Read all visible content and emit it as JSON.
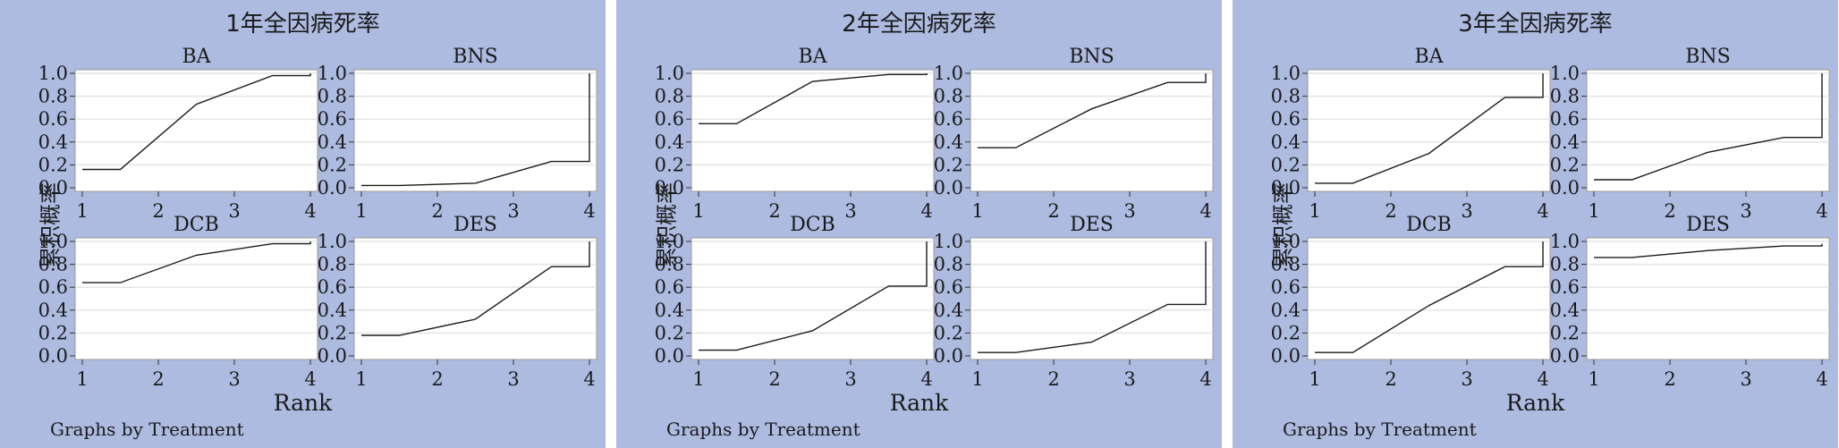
{
  "chart_data": [
    {
      "type": "line",
      "title": "1年全因病死率",
      "ylabel": "累积概率",
      "xlabel": "Rank",
      "note": "Graphs by Treatment",
      "ylim": [
        0,
        1
      ],
      "xlim": [
        1,
        4
      ],
      "yticks": [
        "0.0",
        "0.2",
        "0.4",
        "0.6",
        "0.8",
        "1.0"
      ],
      "xticks": [
        "1",
        "2",
        "3",
        "4"
      ],
      "subplots": [
        {
          "name": "BA",
          "x": [
            1,
            1.5,
            2.5,
            3.5,
            4,
            4
          ],
          "y": [
            0.16,
            0.16,
            0.73,
            0.98,
            0.98,
            1.0
          ]
        },
        {
          "name": "BNS",
          "x": [
            1,
            1.5,
            2.5,
            3.5,
            4,
            4
          ],
          "y": [
            0.02,
            0.02,
            0.04,
            0.23,
            0.23,
            1.0
          ]
        },
        {
          "name": "DCB",
          "x": [
            1,
            1.5,
            2.5,
            3.5,
            4,
            4
          ],
          "y": [
            0.64,
            0.64,
            0.88,
            0.98,
            0.98,
            1.0
          ]
        },
        {
          "name": "DES",
          "x": [
            1,
            1.5,
            2.5,
            3.5,
            4,
            4
          ],
          "y": [
            0.18,
            0.18,
            0.32,
            0.78,
            0.78,
            1.0
          ]
        }
      ]
    },
    {
      "type": "line",
      "title": "2年全因病死率",
      "ylabel": "累积概率",
      "xlabel": "Rank",
      "note": "Graphs by Treatment",
      "ylim": [
        0,
        1
      ],
      "xlim": [
        1,
        4
      ],
      "yticks": [
        "0.0",
        "0.2",
        "0.4",
        "0.6",
        "0.8",
        "1.0"
      ],
      "xticks": [
        "1",
        "2",
        "3",
        "4"
      ],
      "subplots": [
        {
          "name": "BA",
          "x": [
            1,
            1.5,
            2.5,
            3.5,
            4,
            4
          ],
          "y": [
            0.56,
            0.56,
            0.93,
            0.99,
            0.99,
            1.0
          ]
        },
        {
          "name": "BNS",
          "x": [
            1,
            1.5,
            2.5,
            3.5,
            4,
            4
          ],
          "y": [
            0.35,
            0.35,
            0.69,
            0.92,
            0.92,
            1.0
          ]
        },
        {
          "name": "DCB",
          "x": [
            1,
            1.5,
            2.5,
            3.5,
            4,
            4
          ],
          "y": [
            0.05,
            0.05,
            0.22,
            0.61,
            0.61,
            1.0
          ]
        },
        {
          "name": "DES",
          "x": [
            1,
            1.5,
            2.5,
            3.5,
            4,
            4
          ],
          "y": [
            0.03,
            0.03,
            0.12,
            0.45,
            0.45,
            1.0
          ]
        }
      ]
    },
    {
      "type": "line",
      "title": "3年全因病死率",
      "ylabel": "累积概率",
      "xlabel": "Rank",
      "note": "Graphs by Treatment",
      "ylim": [
        0,
        1
      ],
      "xlim": [
        1,
        4
      ],
      "yticks": [
        "0.0",
        "0.2",
        "0.4",
        "0.6",
        "0.8",
        "1.0"
      ],
      "xticks": [
        "1",
        "2",
        "3",
        "4"
      ],
      "subplots": [
        {
          "name": "BA",
          "x": [
            1,
            1.5,
            2.5,
            3.5,
            4,
            4
          ],
          "y": [
            0.04,
            0.04,
            0.3,
            0.79,
            0.79,
            1.0
          ]
        },
        {
          "name": "BNS",
          "x": [
            1,
            1.5,
            2.5,
            3.5,
            4,
            4
          ],
          "y": [
            0.07,
            0.07,
            0.31,
            0.44,
            0.44,
            1.0
          ]
        },
        {
          "name": "DCB",
          "x": [
            1,
            1.5,
            2.5,
            3.5,
            4,
            4
          ],
          "y": [
            0.03,
            0.03,
            0.44,
            0.78,
            0.78,
            1.0
          ]
        },
        {
          "name": "DES",
          "x": [
            1,
            1.5,
            2.5,
            3.5,
            4,
            4
          ],
          "y": [
            0.86,
            0.86,
            0.92,
            0.96,
            0.96,
            0.98
          ]
        }
      ]
    }
  ]
}
